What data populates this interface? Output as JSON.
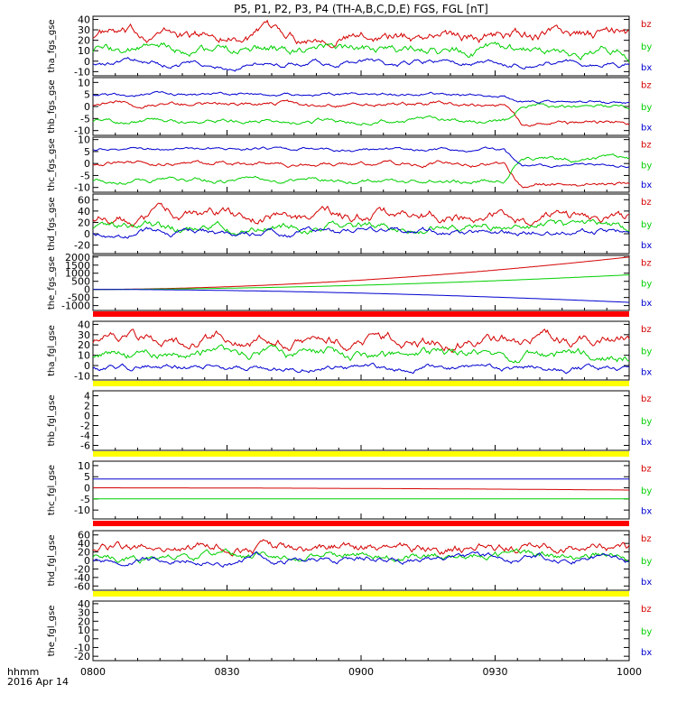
{
  "header": {
    "title": "P5, P1, P2, P3, P4 (TH-A,B,C,D,E) FGS, FGL [nT]"
  },
  "footer": {
    "xlabel_unit": "hhmm",
    "date": "2016 Apr 14"
  },
  "colors": {
    "bz": "#d40000",
    "by": "#00d000",
    "bx": "#0000d0",
    "flag_red": "#ff0000",
    "flag_yellow": "#ffff00"
  },
  "chart_data": {
    "type": "line",
    "x_axis": {
      "ticks": [
        "0800",
        "0830",
        "0900",
        "0930",
        "1000"
      ],
      "range": [
        "08:00",
        "10:00"
      ]
    },
    "panels": [
      {
        "ylabel": "tha_fgs_gse",
        "ylim": [
          -14,
          43
        ],
        "yticks": [
          -10,
          0,
          10,
          20,
          30,
          40
        ],
        "series": [
          {
            "name": "bz",
            "approx_level": 25,
            "noise": 6
          },
          {
            "name": "by",
            "approx_level": 10,
            "noise": 5
          },
          {
            "name": "bx",
            "approx_level": -2,
            "noise": 3
          }
        ],
        "legend": [
          "bz",
          "by",
          "bx"
        ]
      },
      {
        "ylabel": "thb_fgs_gse",
        "ylim": [
          -12,
          12
        ],
        "yticks": [
          -10,
          -5,
          0,
          5,
          10
        ],
        "series": [
          {
            "name": "bz",
            "approx_level": 1,
            "end_level": -7,
            "noise": 1
          },
          {
            "name": "by",
            "approx_level": -6,
            "end_level": 0,
            "noise": 1
          },
          {
            "name": "bx",
            "approx_level": 5,
            "end_level": 2,
            "noise": 0.7
          }
        ],
        "legend": [
          "bz",
          "by",
          "bx"
        ]
      },
      {
        "ylabel": "thc_fgs_gse",
        "ylim": [
          -12,
          11
        ],
        "yticks": [
          -10,
          -5,
          0,
          5,
          10
        ],
        "series": [
          {
            "name": "bz",
            "approx_level": 0,
            "end_level": -9,
            "noise": 1
          },
          {
            "name": "by",
            "approx_level": -7,
            "end_level": 2,
            "noise": 1
          },
          {
            "name": "bx",
            "approx_level": 6,
            "end_level": -1,
            "noise": 0.7
          }
        ],
        "legend": [
          "bz",
          "by",
          "bx"
        ]
      },
      {
        "ylabel": "thd_fgs_gse",
        "ylim": [
          -35,
          70
        ],
        "yticks": [
          -20,
          0,
          20,
          40,
          60
        ],
        "series": [
          {
            "name": "bz",
            "approx_level": 30,
            "noise": 10
          },
          {
            "name": "by",
            "approx_level": 12,
            "noise": 8
          },
          {
            "name": "bx",
            "approx_level": 3,
            "noise": 6
          }
        ],
        "legend": [
          "bz",
          "by",
          "bx"
        ]
      },
      {
        "ylabel": "the_fgs_gse",
        "ylim": [
          -1300,
          2100
        ],
        "yticks": [
          -1000,
          -500,
          0,
          500,
          1000,
          1500,
          2000
        ],
        "series": [
          {
            "name": "bz",
            "start": 0,
            "end": 2000
          },
          {
            "name": "by",
            "start": 0,
            "end": 900
          },
          {
            "name": "bx",
            "start": 0,
            "end": -800
          }
        ],
        "legend": [
          "bz",
          "by",
          "bx"
        ]
      },
      {
        "ylabel": "tha_fgl_gse",
        "ylim": [
          -14,
          43
        ],
        "yticks": [
          -10,
          0,
          10,
          20,
          30,
          40
        ],
        "series": [
          {
            "name": "bz",
            "approx_level": 25,
            "noise": 6
          },
          {
            "name": "by",
            "approx_level": 10,
            "noise": 5
          },
          {
            "name": "bx",
            "approx_level": -2,
            "noise": 3
          }
        ],
        "legend": [
          "bz",
          "by",
          "bx"
        ]
      },
      {
        "ylabel": "thb_fgl_gse",
        "ylim": [
          -7,
          5
        ],
        "yticks": [
          -6,
          -4,
          -2,
          0,
          2,
          4
        ],
        "series": [],
        "legend": [
          "bz",
          "by",
          "bx"
        ]
      },
      {
        "ylabel": "thc_fgl_gse",
        "ylim": [
          -14,
          12
        ],
        "yticks": [
          -10,
          -5,
          0,
          5,
          10
        ],
        "series": [
          {
            "name": "bz",
            "start": 0,
            "end": -1
          },
          {
            "name": "by",
            "start": -5,
            "end": -5
          },
          {
            "name": "bx",
            "start": 4,
            "end": 4
          }
        ],
        "legend": [
          "bz",
          "by",
          "bx"
        ]
      },
      {
        "ylabel": "thd_fgl_gse",
        "ylim": [
          -70,
          70
        ],
        "yticks": [
          -60,
          -40,
          -20,
          0,
          20,
          40,
          60
        ],
        "series": [
          {
            "name": "bz",
            "approx_level": 30,
            "noise": 12
          },
          {
            "name": "by",
            "approx_level": 10,
            "noise": 10
          },
          {
            "name": "bx",
            "approx_level": 2,
            "noise": 8
          }
        ],
        "legend": [
          "bz",
          "by",
          "bx"
        ]
      },
      {
        "ylabel": "the_fgl_gse",
        "ylim": [
          -25,
          43
        ],
        "yticks": [
          -20,
          -10,
          0,
          10,
          20,
          30,
          40
        ],
        "series": [],
        "legend": [
          "bz",
          "by",
          "bx"
        ]
      }
    ],
    "flag_bars": [
      {
        "after_panel": 4,
        "color": "red"
      },
      {
        "after_panel": 5,
        "color": "yellow"
      },
      {
        "after_panel": 6,
        "color": "yellow"
      },
      {
        "after_panel": 7,
        "color": "red"
      },
      {
        "after_panel": 8,
        "color": "yellow"
      }
    ]
  }
}
